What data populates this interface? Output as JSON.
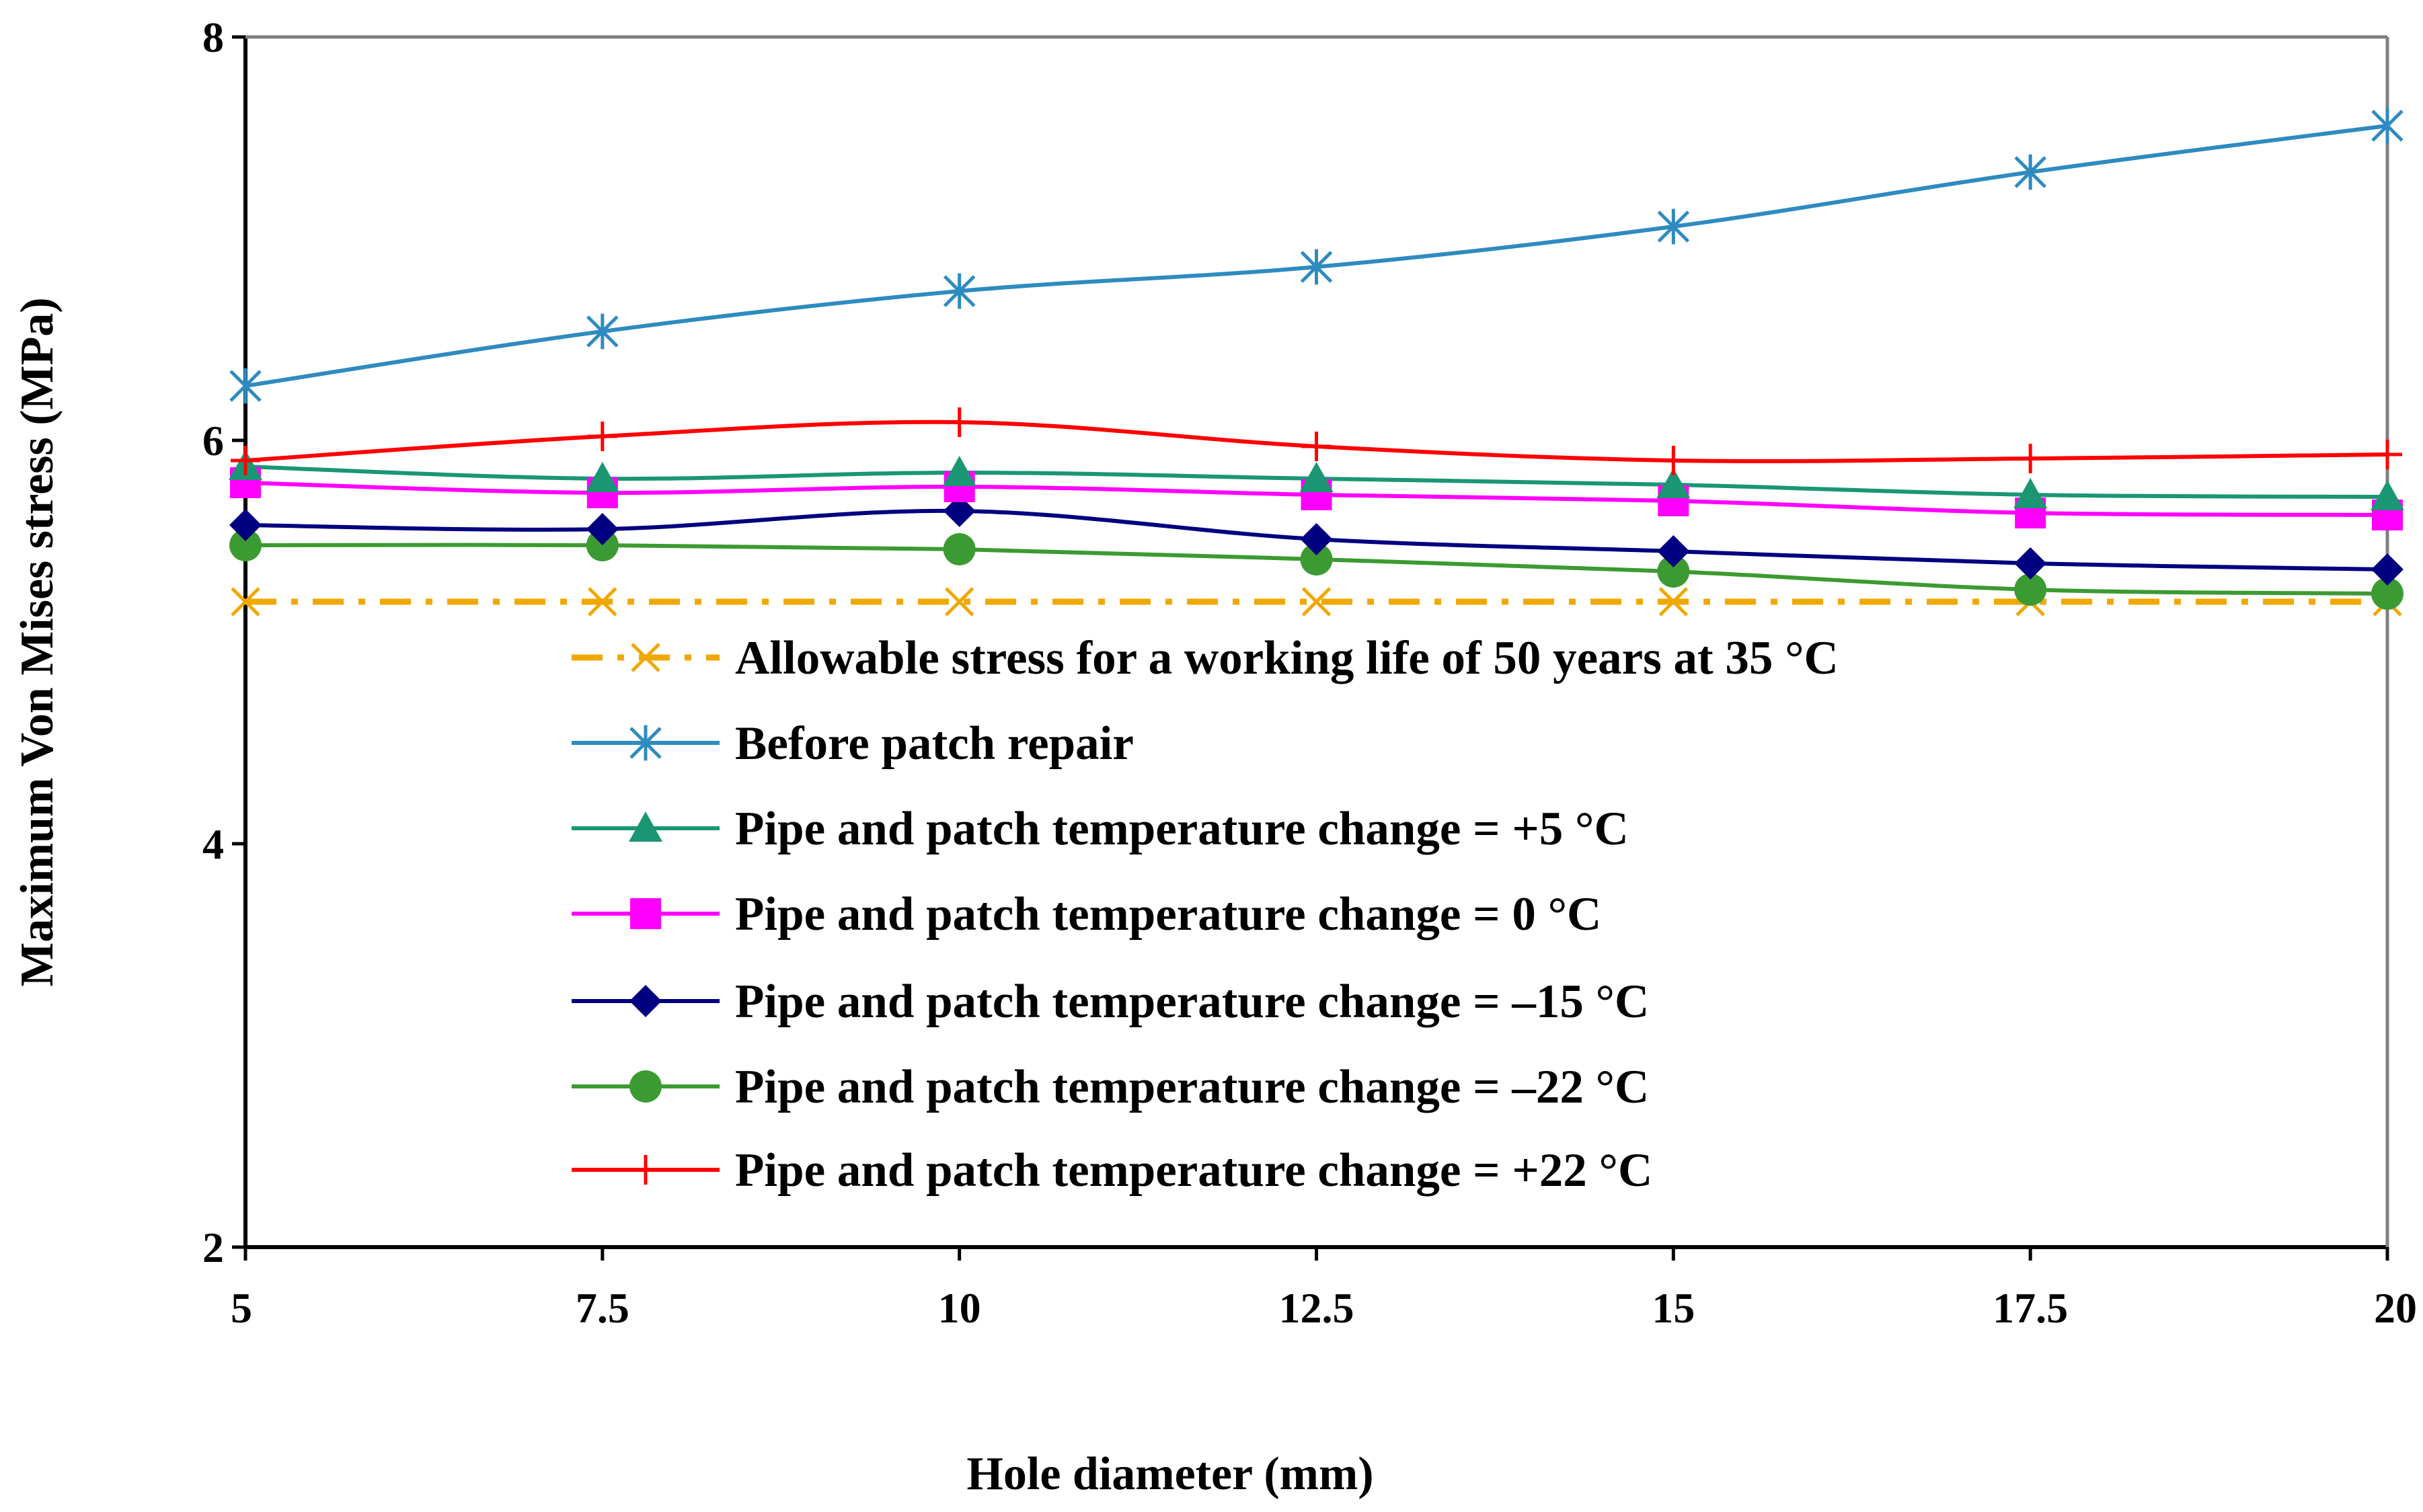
{
  "chart_data": {
    "type": "line",
    "title": "",
    "xlabel": "Hole diameter (mm)",
    "ylabel": "Maximum Von Mises stress (MPa)",
    "xlim": [
      5,
      20
    ],
    "ylim": [
      2,
      8
    ],
    "x_ticks": [
      "5",
      "7.5",
      "10",
      "12.5",
      "15",
      "17.5",
      "20"
    ],
    "y_ticks": [
      "2",
      "4",
      "6",
      "8"
    ],
    "x": [
      5,
      7.5,
      10,
      12.5,
      15,
      17.5,
      20
    ],
    "grid": false,
    "legend_position": "center",
    "series": [
      {
        "name": "Allowable stress for a working life of 50 years at 35 °C",
        "color": "#F0A800",
        "marker": "x",
        "dash": "dashdot",
        "values": [
          5.2,
          5.2,
          5.2,
          5.2,
          5.2,
          5.2,
          5.2
        ]
      },
      {
        "name": "Before patch repair",
        "color": "#2E8BC0",
        "marker": "asterisk",
        "dash": "solid",
        "values": [
          6.27,
          6.54,
          6.74,
          6.86,
          7.06,
          7.33,
          7.56
        ]
      },
      {
        "name": "Pipe and patch temperature change = +5 °C",
        "color": "#1A9673",
        "marker": "triangle",
        "dash": "solid",
        "values": [
          5.87,
          5.81,
          5.84,
          5.81,
          5.78,
          5.73,
          5.72
        ]
      },
      {
        "name": "Pipe and patch temperature change = 0 °C",
        "color": "#FF00FF",
        "marker": "square",
        "dash": "solid",
        "values": [
          5.79,
          5.74,
          5.77,
          5.73,
          5.7,
          5.64,
          5.63
        ]
      },
      {
        "name": "Pipe and patch temperature change = –15 °C",
        "color": "#000080",
        "marker": "diamond",
        "dash": "solid",
        "values": [
          5.58,
          5.56,
          5.65,
          5.51,
          5.45,
          5.39,
          5.36
        ]
      },
      {
        "name": "Pipe and patch temperature change = –22 °C",
        "color": "#3C9A32",
        "marker": "circle",
        "dash": "solid",
        "values": [
          5.48,
          5.48,
          5.46,
          5.41,
          5.35,
          5.26,
          5.24
        ]
      },
      {
        "name": "Pipe and patch temperature change = +22 °C",
        "color": "#FF0000",
        "marker": "plus",
        "dash": "solid",
        "values": [
          5.9,
          6.02,
          6.09,
          5.97,
          5.9,
          5.91,
          5.93
        ]
      }
    ]
  }
}
